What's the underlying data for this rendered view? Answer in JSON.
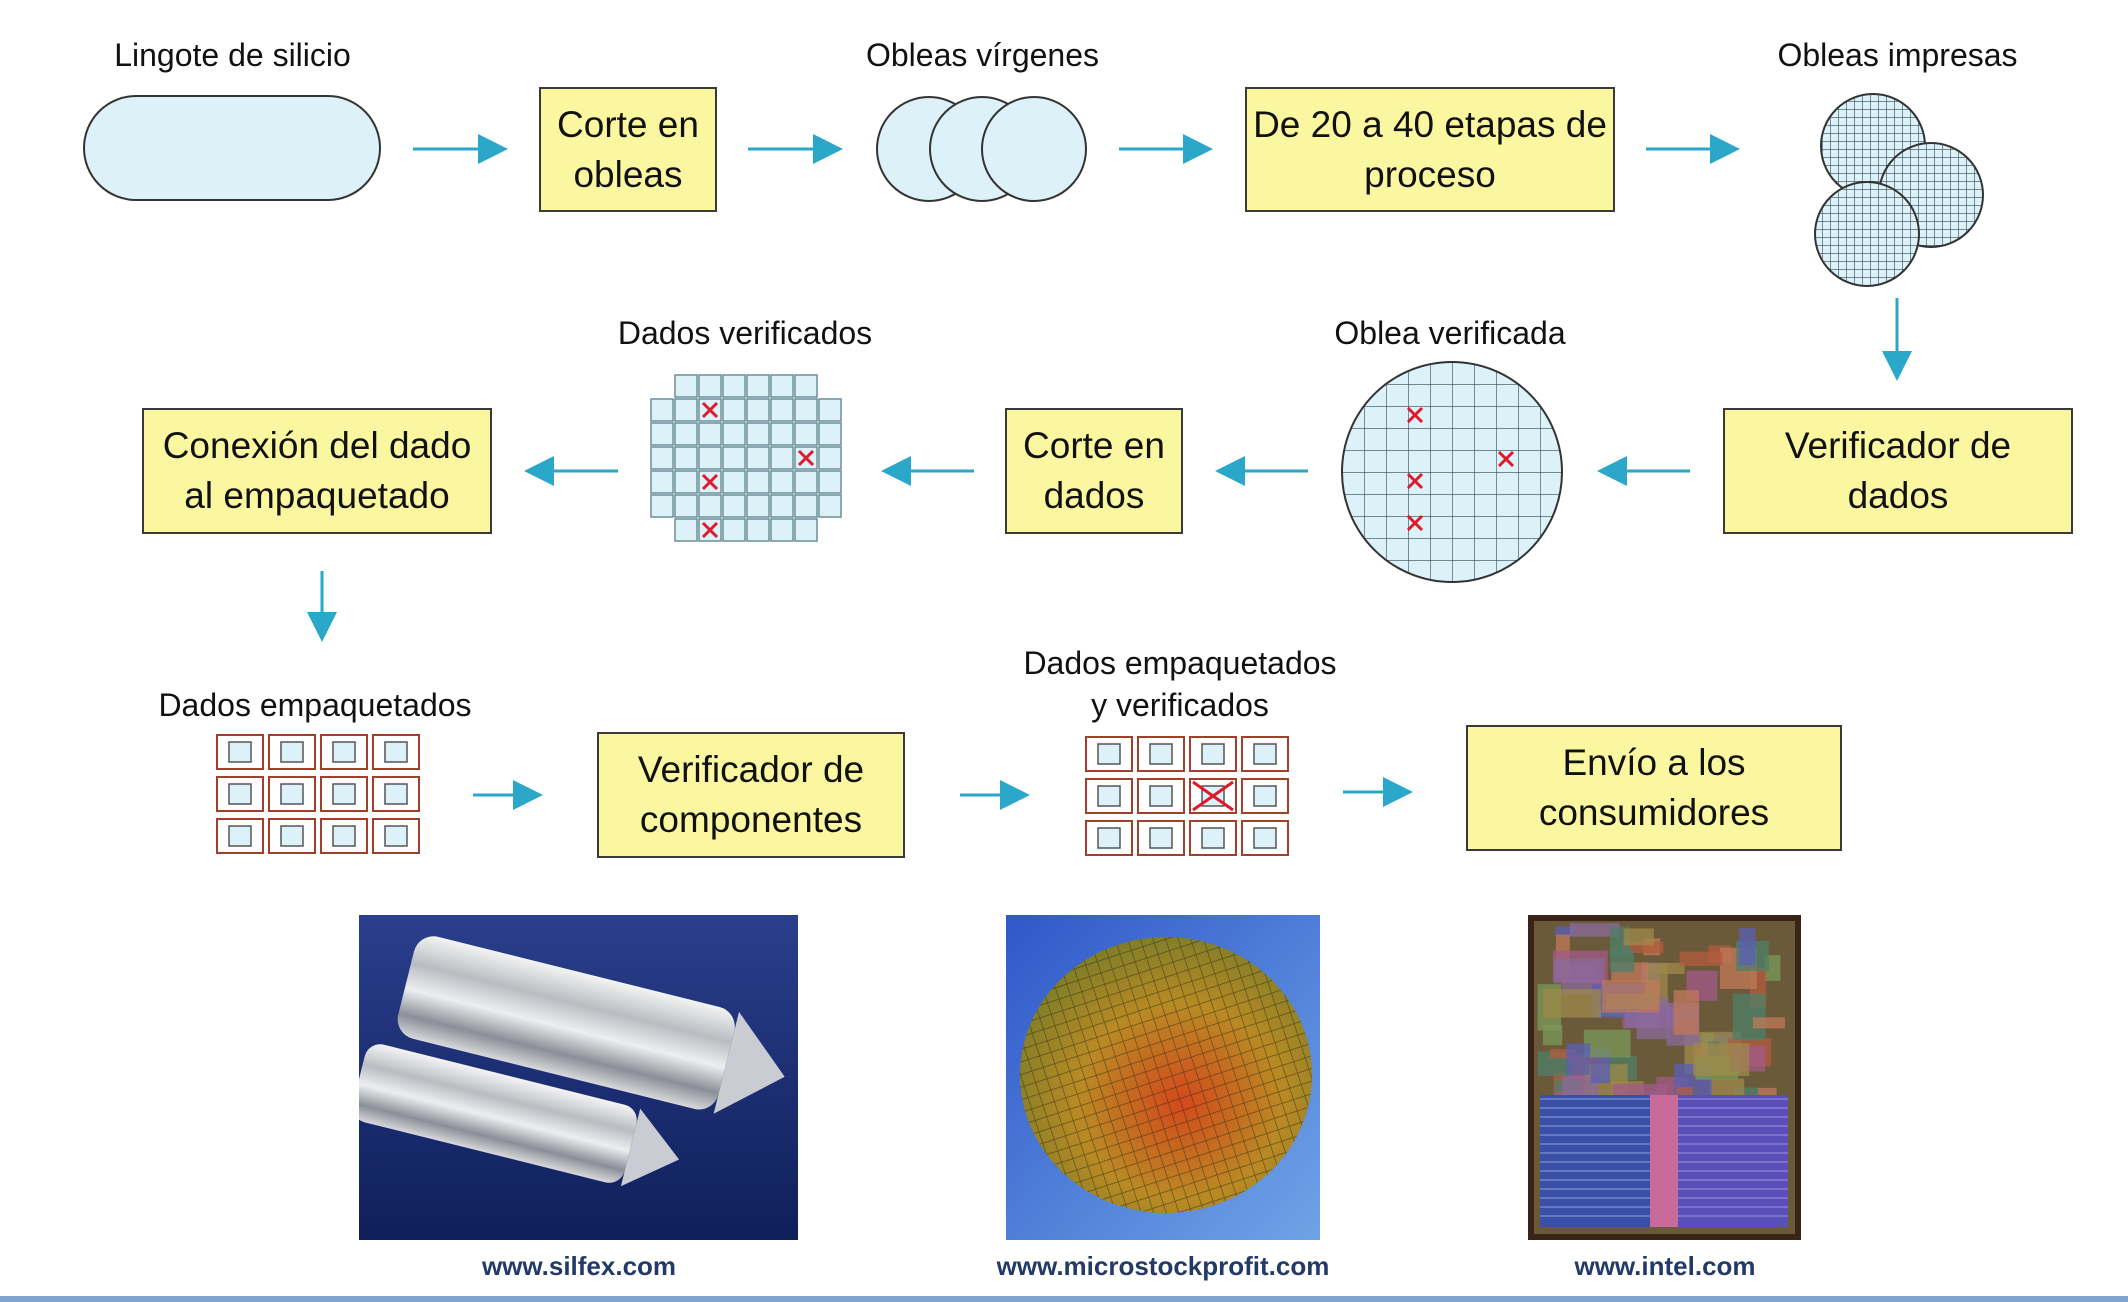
{
  "labels": {
    "ingot": "Lingote de silicio",
    "blank_wafers": "Obleas vírgenes",
    "printed_wafers": "Obleas impresas",
    "tested_dies": "Dados verificados",
    "tested_wafer": "Oblea verificada",
    "packaged_dies": "Dados empaquetados",
    "packaged_tested_1": "Dados empaquetados",
    "packaged_tested_2": "y verificados"
  },
  "steps": {
    "slicer_1": "Corte en",
    "slicer_2": "obleas",
    "process_1": "De 20 a 40 etapas de",
    "process_2": "proceso",
    "bond_1": "Conexión del dado",
    "bond_2": "al empaquetado",
    "dicer_1": "Corte en",
    "dicer_2": "dados",
    "wafer_tester_1": "Verificador de",
    "wafer_tester_2": "dados",
    "part_tester_1": "Verificador de",
    "part_tester_2": "componentes",
    "ship_1": "Envío a los",
    "ship_2": "consumidores"
  },
  "credits": {
    "photo1": "www.silfex.com",
    "photo2": "www.microstockprofit.com",
    "photo3": "www.intel.com"
  },
  "colors": {
    "arrow": "#2aa7c9",
    "step_fill": "#fbf6a0",
    "wafer_fill": "#ddf1f8",
    "defect": "#e0192a",
    "package_border": "#a0402a",
    "url_text": "#233a66"
  }
}
